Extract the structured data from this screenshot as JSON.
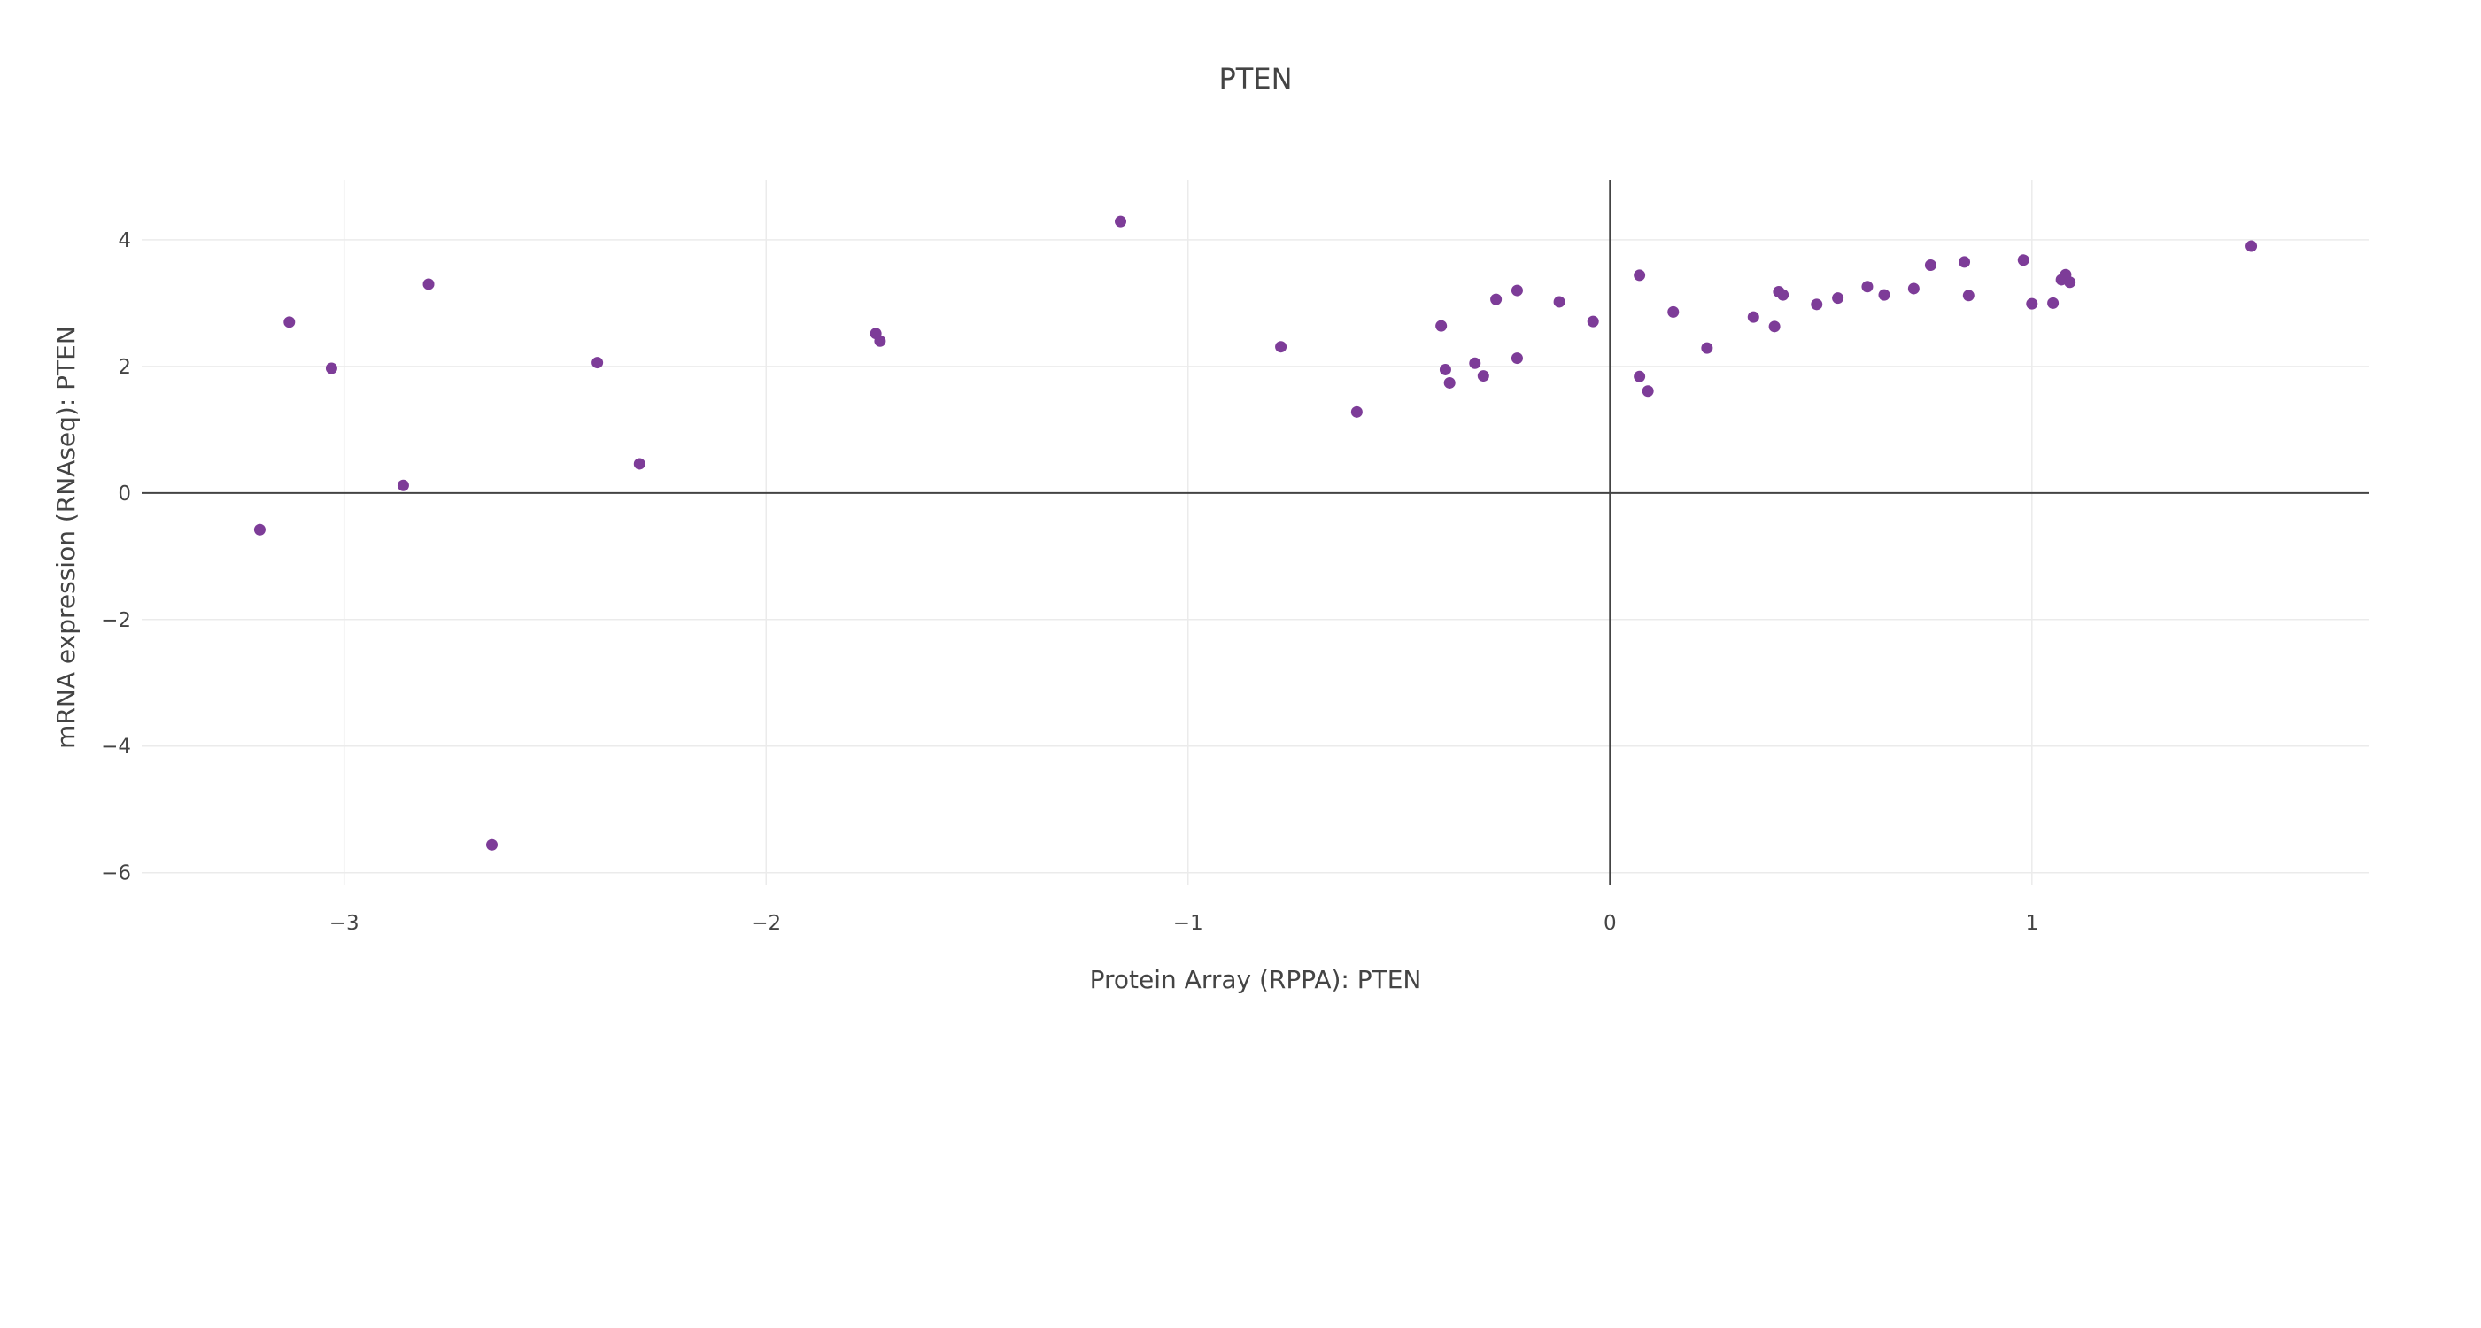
{
  "chart_data": {
    "type": "scatter",
    "title": "PTEN",
    "xlabel": "Protein Array (RPPA): PTEN",
    "ylabel": "mRNA expression (RNAseq): PTEN",
    "xlim": [
      -3.48,
      1.8
    ],
    "ylim": [
      -6.2,
      4.95
    ],
    "xticks": [
      -3,
      -2,
      -1,
      0,
      1
    ],
    "yticks": [
      -6,
      -4,
      -2,
      0,
      2,
      4
    ],
    "xtick_labels": [
      "−3",
      "−2",
      "−1",
      "0",
      "1"
    ],
    "ytick_labels": [
      "−6",
      "−4",
      "−2",
      "0",
      "2",
      "4"
    ],
    "grid": true,
    "zero_lines": true,
    "marker_color": "#7d3c98",
    "points": [
      {
        "x": -3.2,
        "y": -0.58
      },
      {
        "x": -3.13,
        "y": 2.7
      },
      {
        "x": -3.03,
        "y": 1.97
      },
      {
        "x": -2.86,
        "y": 0.12
      },
      {
        "x": -2.8,
        "y": 3.3
      },
      {
        "x": -2.65,
        "y": -5.56
      },
      {
        "x": -2.4,
        "y": 2.06
      },
      {
        "x": -2.3,
        "y": 0.46
      },
      {
        "x": -1.74,
        "y": 2.52
      },
      {
        "x": -1.73,
        "y": 2.4
      },
      {
        "x": -1.16,
        "y": 4.29
      },
      {
        "x": -0.78,
        "y": 2.31
      },
      {
        "x": -0.6,
        "y": 1.28
      },
      {
        "x": -0.4,
        "y": 2.64
      },
      {
        "x": -0.39,
        "y": 1.95
      },
      {
        "x": -0.38,
        "y": 1.74
      },
      {
        "x": -0.32,
        "y": 2.05
      },
      {
        "x": -0.3,
        "y": 1.85
      },
      {
        "x": -0.27,
        "y": 3.06
      },
      {
        "x": -0.22,
        "y": 3.2
      },
      {
        "x": -0.22,
        "y": 2.13
      },
      {
        "x": -0.12,
        "y": 3.02
      },
      {
        "x": -0.04,
        "y": 2.71
      },
      {
        "x": 0.07,
        "y": 3.44
      },
      {
        "x": 0.07,
        "y": 1.84
      },
      {
        "x": 0.09,
        "y": 1.61
      },
      {
        "x": 0.15,
        "y": 2.86
      },
      {
        "x": 0.23,
        "y": 2.29
      },
      {
        "x": 0.34,
        "y": 2.78
      },
      {
        "x": 0.39,
        "y": 2.63
      },
      {
        "x": 0.4,
        "y": 3.18
      },
      {
        "x": 0.41,
        "y": 3.13
      },
      {
        "x": 0.49,
        "y": 2.98
      },
      {
        "x": 0.54,
        "y": 3.08
      },
      {
        "x": 0.61,
        "y": 3.26
      },
      {
        "x": 0.65,
        "y": 3.13
      },
      {
        "x": 0.72,
        "y": 3.23
      },
      {
        "x": 0.76,
        "y": 3.6
      },
      {
        "x": 0.84,
        "y": 3.65
      },
      {
        "x": 0.85,
        "y": 3.12
      },
      {
        "x": 0.98,
        "y": 3.68
      },
      {
        "x": 1.0,
        "y": 2.99
      },
      {
        "x": 1.05,
        "y": 3.0
      },
      {
        "x": 1.07,
        "y": 3.37
      },
      {
        "x": 1.08,
        "y": 3.45
      },
      {
        "x": 1.09,
        "y": 3.33
      },
      {
        "x": 1.52,
        "y": 3.9
      }
    ]
  }
}
